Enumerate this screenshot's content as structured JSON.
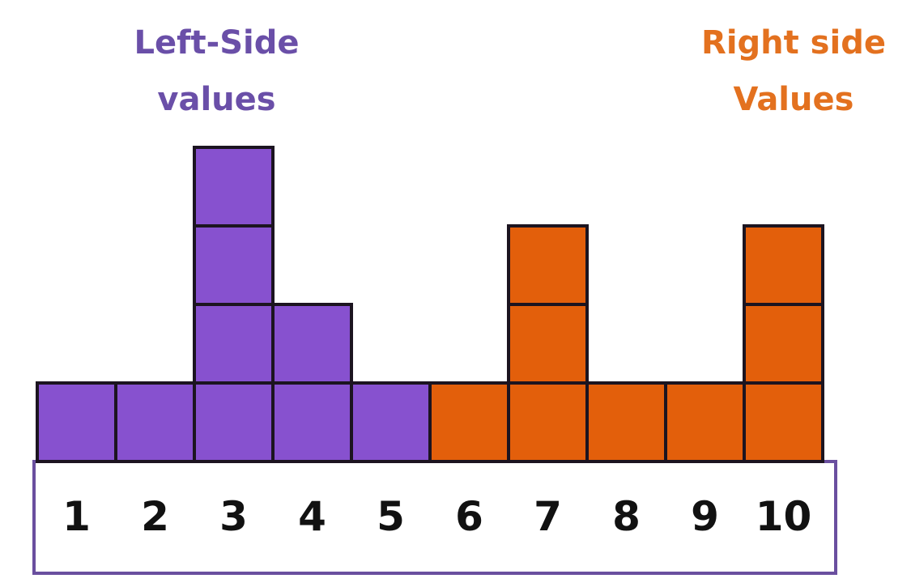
{
  "chart_data": {
    "type": "bar",
    "categories": [
      "1",
      "2",
      "3",
      "4",
      "5",
      "6",
      "7",
      "8",
      "9",
      "10"
    ],
    "values": [
      1,
      1,
      4,
      2,
      1,
      1,
      3,
      1,
      1,
      3
    ],
    "groups": [
      {
        "name": "Left-Side values",
        "categories": [
          "1",
          "2",
          "3",
          "4",
          "5"
        ],
        "color": "#8751cf"
      },
      {
        "name": "Right side Values",
        "categories": [
          "6",
          "7",
          "8",
          "9",
          "10"
        ],
        "color": "#e35f0b"
      }
    ],
    "title": "",
    "xlabel": "",
    "ylabel": "",
    "ylim": [
      0,
      4
    ],
    "grid": false,
    "legend": "top-left / top-right labels"
  },
  "labels": {
    "left_line1": "Left-Side",
    "left_line2": "values",
    "right_line1": "Right side",
    "right_line2": "Values"
  },
  "colors": {
    "left": "#8751cf",
    "right": "#e35f0b",
    "left_text": "#6a4fa8",
    "right_text": "#e3711f",
    "outline": "#1c1420",
    "axis_border": "#6a4f9f"
  }
}
